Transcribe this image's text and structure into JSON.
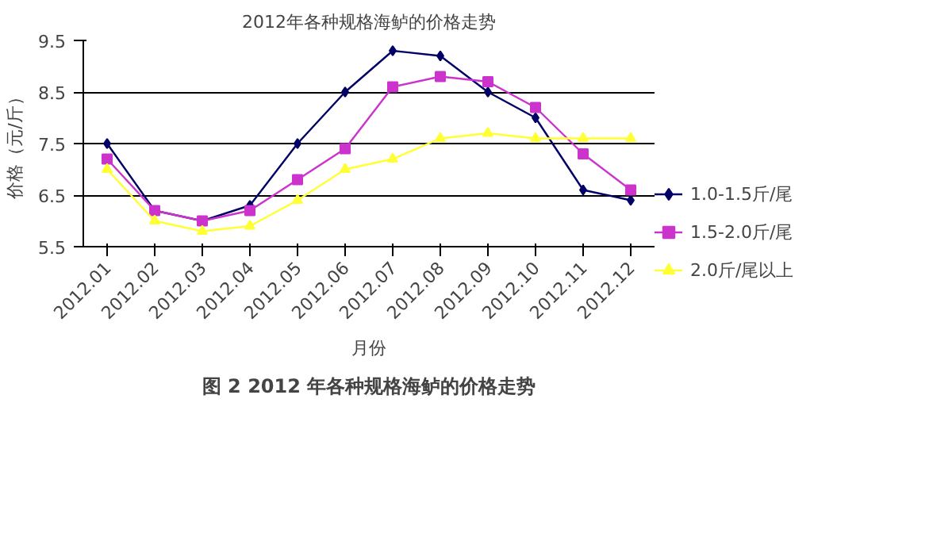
{
  "chart_data": {
    "type": "line",
    "title": "2012年各种规格海鲈的价格走势",
    "xlabel": "月份",
    "ylabel": "价格（元/斤）",
    "categories": [
      "2012.01",
      "2012.02",
      "2012.03",
      "2012.04",
      "2012.05",
      "2012.06",
      "2012.07",
      "2012.08",
      "2012.09",
      "2012.10",
      "2012.11",
      "2012.12"
    ],
    "series": [
      {
        "name": "1.0-1.5斤/尾",
        "color": "#000066",
        "marker": "diamond",
        "values": [
          7.5,
          6.2,
          6.0,
          6.3,
          7.5,
          8.5,
          9.3,
          9.2,
          8.5,
          8.0,
          6.6,
          6.4
        ]
      },
      {
        "name": "1.5-2.0斤/尾",
        "color": "#cc33cc",
        "marker": "square",
        "values": [
          7.2,
          6.2,
          6.0,
          6.2,
          6.8,
          7.4,
          8.6,
          8.8,
          8.7,
          8.2,
          7.3,
          6.6
        ]
      },
      {
        "name": "2.0斤/尾以上",
        "color": "#ffff33",
        "marker": "triangle",
        "values": [
          7.0,
          6.0,
          5.8,
          5.9,
          6.4,
          7.0,
          7.2,
          7.6,
          7.7,
          7.6,
          7.6,
          7.6
        ]
      }
    ],
    "ylim": [
      5.5,
      9.5
    ],
    "yticks": [
      5.5,
      6.5,
      7.5,
      8.5,
      9.5
    ],
    "grid": "y",
    "legend": "right",
    "line_style": "solid",
    "annotations": [
      "图 2 2012 年各种规格海鲈的价格走势"
    ]
  }
}
